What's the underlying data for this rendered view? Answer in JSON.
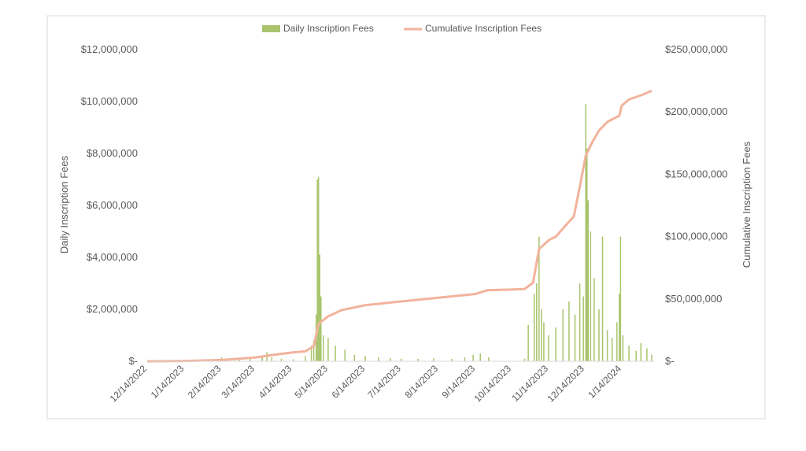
{
  "chart_data": {
    "type": "bar",
    "secondary_type": "line",
    "title": "",
    "legend": {
      "placement": "top-center",
      "items": [
        {
          "label": "Daily Inscription Fees",
          "color": "#a9c46c",
          "kind": "bar"
        },
        {
          "label": "Cumulative Inscription Fees",
          "color": "#f2b39c",
          "kind": "line"
        }
      ]
    },
    "y_left": {
      "label": "Daily Inscription Fees",
      "range": [
        0,
        12000000
      ],
      "ticks": [
        0,
        2000000,
        4000000,
        6000000,
        8000000,
        10000000,
        12000000
      ],
      "tick_labels": [
        "$-",
        "$2,000,000",
        "$4,000,000",
        "$6,000,000",
        "$8,000,000",
        "$10,000,000",
        "$12,000,000"
      ]
    },
    "y_right": {
      "label": "Cumulative Inscription Fees",
      "range": [
        0,
        250000000
      ],
      "ticks": [
        0,
        50000000,
        100000000,
        150000000,
        200000000,
        250000000
      ],
      "tick_labels": [
        "$-",
        "$50,000,000",
        "$100,000,000",
        "$150,000,000",
        "$200,000,000",
        "$250,000,000"
      ]
    },
    "x_axis": {
      "range": [
        "2022-12-14",
        "2024-02-10"
      ],
      "ticks": [
        "2022-12-14",
        "2023-01-14",
        "2023-02-14",
        "2023-03-14",
        "2023-04-14",
        "2023-05-14",
        "2023-06-14",
        "2023-07-14",
        "2023-08-14",
        "2023-09-14",
        "2023-10-14",
        "2023-11-14",
        "2023-12-14",
        "2024-01-14"
      ],
      "tick_labels": [
        "12/14/2022",
        "1/14/2023",
        "2/14/2023",
        "3/14/2023",
        "4/14/2023",
        "5/14/2023",
        "6/14/2023",
        "7/14/2023",
        "8/14/2023",
        "9/14/2023",
        "10/14/2023",
        "11/14/2023",
        "12/14/2023",
        "1/14/2024"
      ]
    },
    "grid": false,
    "daily_series": {
      "name": "Daily Inscription Fees",
      "points": [
        [
          "2022-12-14",
          0
        ],
        [
          "2023-01-20",
          5000
        ],
        [
          "2023-02-10",
          40000
        ],
        [
          "2023-02-14",
          150000
        ],
        [
          "2023-02-18",
          60000
        ],
        [
          "2023-03-01",
          80000
        ],
        [
          "2023-03-10",
          120000
        ],
        [
          "2023-03-20",
          200000
        ],
        [
          "2023-03-24",
          350000
        ],
        [
          "2023-03-28",
          150000
        ],
        [
          "2023-04-05",
          100000
        ],
        [
          "2023-04-15",
          80000
        ],
        [
          "2023-04-25",
          200000
        ],
        [
          "2023-04-30",
          600000
        ],
        [
          "2023-05-02",
          800000
        ],
        [
          "2023-05-04",
          1800000
        ],
        [
          "2023-05-05",
          7000000
        ],
        [
          "2023-05-06",
          7100000
        ],
        [
          "2023-05-07",
          4100000
        ],
        [
          "2023-05-08",
          2500000
        ],
        [
          "2023-05-10",
          1000000
        ],
        [
          "2023-05-14",
          900000
        ],
        [
          "2023-05-20",
          600000
        ],
        [
          "2023-05-28",
          450000
        ],
        [
          "2023-06-05",
          250000
        ],
        [
          "2023-06-14",
          200000
        ],
        [
          "2023-06-25",
          150000
        ],
        [
          "2023-07-05",
          120000
        ],
        [
          "2023-07-14",
          100000
        ],
        [
          "2023-07-28",
          90000
        ],
        [
          "2023-08-10",
          110000
        ],
        [
          "2023-08-25",
          90000
        ],
        [
          "2023-09-05",
          150000
        ],
        [
          "2023-09-12",
          250000
        ],
        [
          "2023-09-18",
          300000
        ],
        [
          "2023-09-25",
          150000
        ],
        [
          "2023-10-01",
          20000
        ],
        [
          "2023-10-25",
          100000
        ],
        [
          "2023-10-28",
          1400000
        ],
        [
          "2023-11-02",
          2600000
        ],
        [
          "2023-11-04",
          3000000
        ],
        [
          "2023-11-06",
          4800000
        ],
        [
          "2023-11-08",
          2000000
        ],
        [
          "2023-11-10",
          1500000
        ],
        [
          "2023-11-14",
          1000000
        ],
        [
          "2023-11-20",
          1300000
        ],
        [
          "2023-11-26",
          2000000
        ],
        [
          "2023-12-01",
          2300000
        ],
        [
          "2023-12-06",
          1800000
        ],
        [
          "2023-12-10",
          3000000
        ],
        [
          "2023-12-13",
          2500000
        ],
        [
          "2023-12-15",
          9900000
        ],
        [
          "2023-12-16",
          8200000
        ],
        [
          "2023-12-17",
          6200000
        ],
        [
          "2023-12-19",
          5000000
        ],
        [
          "2023-12-22",
          3200000
        ],
        [
          "2023-12-26",
          2000000
        ],
        [
          "2023-12-29",
          4800000
        ],
        [
          "2024-01-02",
          1200000
        ],
        [
          "2024-01-06",
          900000
        ],
        [
          "2024-01-10",
          1500000
        ],
        [
          "2024-01-12",
          2600000
        ],
        [
          "2024-01-13",
          4800000
        ],
        [
          "2024-01-15",
          1000000
        ],
        [
          "2024-01-20",
          600000
        ],
        [
          "2024-01-26",
          400000
        ],
        [
          "2024-01-30",
          700000
        ],
        [
          "2024-02-04",
          500000
        ],
        [
          "2024-02-08",
          250000
        ]
      ]
    },
    "cumulative_series": {
      "name": "Cumulative Inscription Fees",
      "points": [
        [
          "2022-12-14",
          0
        ],
        [
          "2023-01-14",
          200000
        ],
        [
          "2023-02-14",
          1000000
        ],
        [
          "2023-03-14",
          3000000
        ],
        [
          "2023-03-28",
          5000000
        ],
        [
          "2023-04-14",
          7000000
        ],
        [
          "2023-04-25",
          8000000
        ],
        [
          "2023-05-02",
          12000000
        ],
        [
          "2023-05-06",
          30000000
        ],
        [
          "2023-05-14",
          36000000
        ],
        [
          "2023-05-25",
          41000000
        ],
        [
          "2023-06-14",
          45000000
        ],
        [
          "2023-07-14",
          48000000
        ],
        [
          "2023-08-14",
          51000000
        ],
        [
          "2023-09-14",
          54000000
        ],
        [
          "2023-09-24",
          57000000
        ],
        [
          "2023-10-14",
          57500000
        ],
        [
          "2023-10-25",
          58000000
        ],
        [
          "2023-11-01",
          63000000
        ],
        [
          "2023-11-06",
          90000000
        ],
        [
          "2023-11-14",
          97000000
        ],
        [
          "2023-11-20",
          100000000
        ],
        [
          "2023-12-01",
          112000000
        ],
        [
          "2023-12-05",
          116000000
        ],
        [
          "2023-12-10",
          140000000
        ],
        [
          "2023-12-15",
          165000000
        ],
        [
          "2023-12-20",
          175000000
        ],
        [
          "2023-12-26",
          185000000
        ],
        [
          "2024-01-02",
          192000000
        ],
        [
          "2024-01-12",
          197000000
        ],
        [
          "2024-01-14",
          205000000
        ],
        [
          "2024-01-20",
          210000000
        ],
        [
          "2024-02-01",
          214000000
        ],
        [
          "2024-02-08",
          217000000
        ]
      ]
    }
  }
}
